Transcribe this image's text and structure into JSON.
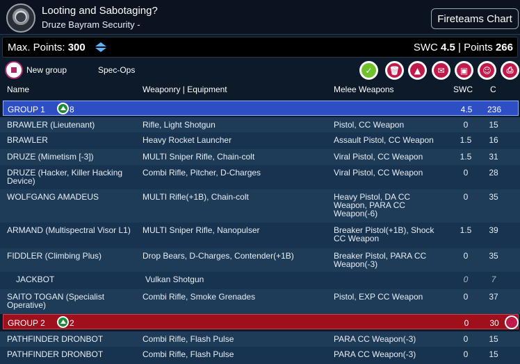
{
  "header": {
    "title": "Looting and Sabotaging?",
    "subtitle": "Druze Bayram Security -",
    "fireteams_label": "Fireteams Chart"
  },
  "points": {
    "max_label": "Max. Points:",
    "max_value": "300",
    "swc_label": "SWC",
    "swc_value": "4.5",
    "sep": "|",
    "points_label": "Points",
    "points_value": "266"
  },
  "toolbar": {
    "new_group": "New group",
    "specops": "Spec-Ops",
    "icons": [
      {
        "name": "validate-icon",
        "color": "#6fc22a",
        "glyph": "✓"
      },
      {
        "name": "delete-list-icon",
        "color": "#c01a4a",
        "glyph": "🗑"
      },
      {
        "name": "logo-army-icon",
        "color": "#c01a4a",
        "glyph": "▲"
      },
      {
        "name": "chat-icon",
        "color": "#c01a4a",
        "glyph": "✉"
      },
      {
        "name": "save-icon",
        "color": "#c01a4a",
        "glyph": "▣"
      },
      {
        "name": "share-icon",
        "color": "#c01a4a",
        "glyph": "☺"
      },
      {
        "name": "print-icon",
        "color": "#c01a4a",
        "glyph": "⎙"
      }
    ]
  },
  "columns": {
    "name": "Name",
    "weapons": "Weaponry | Equipment",
    "melee": "Melee Weapons",
    "swc": "SWC",
    "cost": "C"
  },
  "groups": [
    {
      "label": "GROUP 1",
      "count": "8",
      "swc": "4.5",
      "cost": "236",
      "color": "#2e4fc4"
    },
    {
      "label": "GROUP 2",
      "count": "2",
      "swc": "0",
      "cost": "30",
      "color": "#a0101c"
    }
  ],
  "rows": [
    {
      "name": "BRAWLER (Lieutenant)",
      "weapons": "Rifle, Light Shotgun",
      "melee": "Pistol, CC Weapon",
      "swc": "0",
      "cost": "15"
    },
    {
      "name": "BRAWLER",
      "weapons": "Heavy Rocket Launcher",
      "melee": "Assault Pistol, CC Weapon",
      "swc": "1.5",
      "cost": "16"
    },
    {
      "name": "DRUZE (Mimetism [-3])",
      "weapons": "MULTI Sniper Rifle, Chain-colt",
      "melee": "Viral Pistol, CC Weapon",
      "swc": "1.5",
      "cost": "31"
    },
    {
      "name": "DRUZE (Hacker, Killer Hacking Device)",
      "weapons": "Combi Rifle, Pitcher, D-Charges",
      "melee": "Viral Pistol, CC Weapon",
      "swc": "0",
      "cost": "28"
    },
    {
      "name": "WOLFGANG AMADEUS",
      "weapons": "MULTI Rifle(+1B), Chain-colt",
      "melee": "Heavy Pistol, DA CC Weapon, PARA CC Weapon(-6)",
      "swc": "0",
      "cost": "35"
    },
    {
      "name": "ARMAND (Multispectral Visor L1)",
      "weapons": "MULTI Sniper Rifle, Nanopulser",
      "melee": "Breaker Pistol(+1B), Shock CC Weapon",
      "swc": "1.5",
      "cost": "39"
    },
    {
      "name": "FIDDLER (Climbing Plus)",
      "weapons": "Drop Bears, D-Charges, Contender(+1B)",
      "melee": "Breaker Pistol, PARA CC Weapon(-3)",
      "swc": "0",
      "cost": "35"
    },
    {
      "name": "JACKBOT",
      "weapons": "Vulkan Shotgun",
      "melee": "",
      "swc": "0",
      "cost": "7"
    },
    {
      "name": "SAITO TOGAN (Specialist Operative)",
      "weapons": "Combi Rifle, Smoke Grenades",
      "melee": "Pistol, EXP CC Weapon",
      "swc": "0",
      "cost": "37"
    },
    {
      "name": "PATHFINDER DRONBOT",
      "weapons": "Combi Rifle, Flash Pulse",
      "melee": "PARA CC Weapon(-3)",
      "swc": "0",
      "cost": "15"
    },
    {
      "name": "PATHFINDER DRONBOT",
      "weapons": "Combi Rifle, Flash Pulse",
      "melee": "PARA CC Weapon(-3)",
      "swc": "0",
      "cost": "15"
    }
  ]
}
